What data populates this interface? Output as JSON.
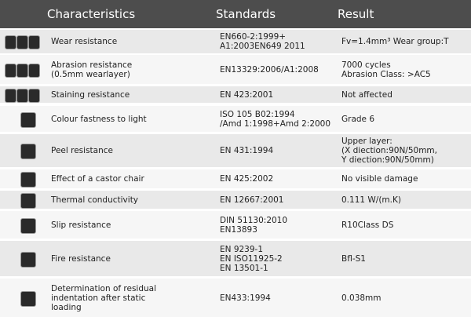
{
  "table": {
    "header": [
      "Characteristics",
      "Standards",
      "Result"
    ],
    "rows": [
      {
        "characteristic": [
          "Wear resistance"
        ],
        "standard": [
          "EN660-2:1999+",
          "A1:2003EN649 2011"
        ],
        "result": [
          "Fv=1.4mm³ Wear group:T"
        ]
      },
      {
        "characteristic": [
          "Abrasion resistance",
          "(0.5mm wearlayer)"
        ],
        "standard": [
          "EN13329:2006/A1:2008"
        ],
        "result": [
          "7000 cycles",
          "Abrasion Class: >AC5"
        ]
      },
      {
        "characteristic": [
          "Staining resistance"
        ],
        "standard": [
          "EN 423:2001"
        ],
        "result": [
          "Not affected"
        ]
      },
      {
        "characteristic": [
          "Colour fastness to light"
        ],
        "standard": [
          "ISO 105 B02:1994",
          "/Amd 1:1998+Amd 2:2000"
        ],
        "result": [
          "Grade  6"
        ]
      },
      {
        "characteristic": [
          "Peel resistance"
        ],
        "standard": [
          "EN 431:1994"
        ],
        "result": [
          "Upper layer:",
          "(X diection:90N/50mm,",
          "Y diection:90N/50mm)"
        ]
      },
      {
        "characteristic": [
          "Effect of a castor chair"
        ],
        "standard": [
          "EN 425:2002"
        ],
        "result": [
          "No visible damage"
        ]
      },
      {
        "characteristic": [
          "Thermal conductivity"
        ],
        "standard": [
          "EN 12667:2001"
        ],
        "result": [
          "0.111 W/(m.K)"
        ]
      },
      {
        "characteristic": [
          "Slip resistance"
        ],
        "standard": [
          "DIN 51130:2010",
          "EN13893"
        ],
        "result": [
          "R10Class DS"
        ]
      },
      {
        "characteristic": [
          "Fire resistance"
        ],
        "standard": [
          "EN 9239-1",
          "EN ISO11925-2",
          "EN 13501-1"
        ],
        "result": [
          "Bfl-S1"
        ]
      },
      {
        "characteristic": [
          "Determination of residual",
          "indentation after static",
          "loading"
        ],
        "standard": [
          "EN433:1994"
        ],
        "result": [
          "0.038mm"
        ]
      }
    ]
  }
}
